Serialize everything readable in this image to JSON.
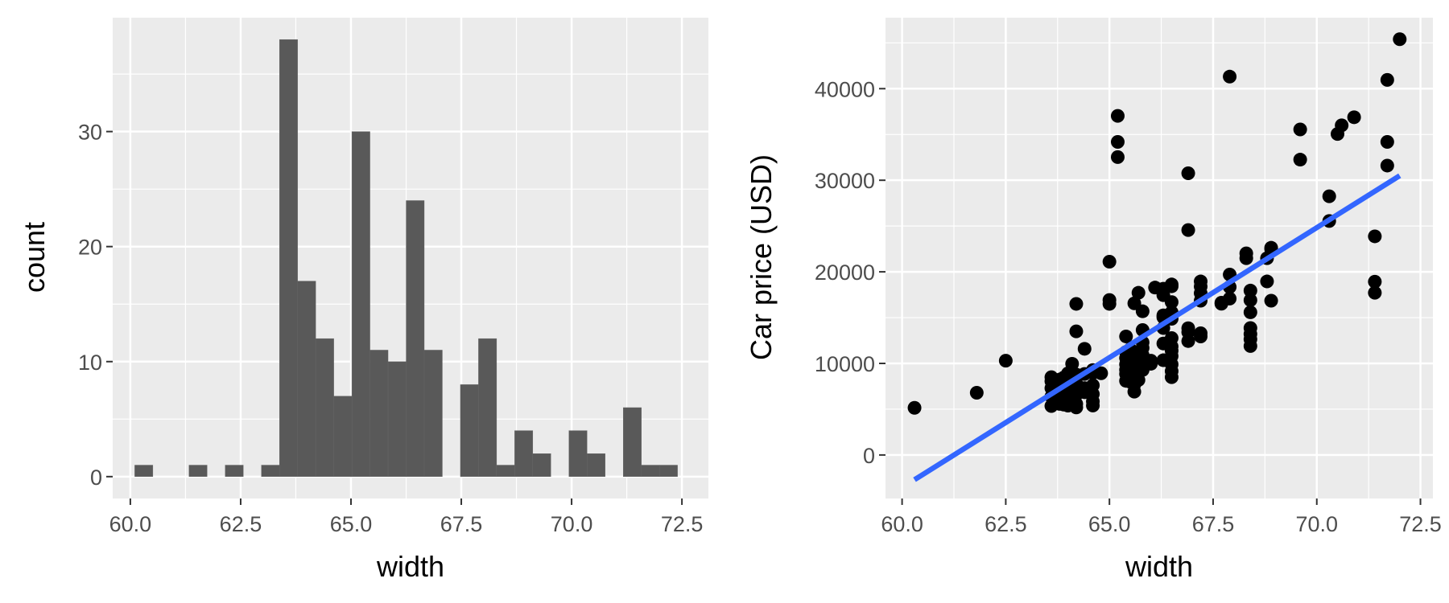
{
  "chart_data": [
    {
      "type": "bar",
      "subtype": "histogram",
      "xlabel": "width",
      "ylabel": "count",
      "xlim": [
        59.6,
        73.1
      ],
      "ylim": [
        -1.9,
        39.9
      ],
      "x_ticks": [
        60.0,
        62.5,
        65.0,
        67.5,
        70.0,
        72.5
      ],
      "x_tick_labels": [
        "60.0",
        "62.5",
        "65.0",
        "67.5",
        "70.0",
        "72.5"
      ],
      "y_ticks": [
        0,
        10,
        20,
        30
      ],
      "y_tick_labels": [
        "0",
        "10",
        "20",
        "30"
      ],
      "bin_width": 0.41,
      "bins": [
        {
          "start": 60.1,
          "count": 1
        },
        {
          "start": 61.33,
          "count": 1
        },
        {
          "start": 62.15,
          "count": 1
        },
        {
          "start": 62.97,
          "count": 1
        },
        {
          "start": 63.38,
          "count": 38
        },
        {
          "start": 63.79,
          "count": 17
        },
        {
          "start": 64.2,
          "count": 12
        },
        {
          "start": 64.61,
          "count": 7
        },
        {
          "start": 65.02,
          "count": 30
        },
        {
          "start": 65.43,
          "count": 11
        },
        {
          "start": 65.84,
          "count": 10
        },
        {
          "start": 66.25,
          "count": 24
        },
        {
          "start": 66.66,
          "count": 11
        },
        {
          "start": 67.48,
          "count": 8
        },
        {
          "start": 67.89,
          "count": 12
        },
        {
          "start": 68.3,
          "count": 1
        },
        {
          "start": 68.71,
          "count": 4
        },
        {
          "start": 69.12,
          "count": 2
        },
        {
          "start": 69.94,
          "count": 4
        },
        {
          "start": 70.35,
          "count": 2
        },
        {
          "start": 71.17,
          "count": 6
        },
        {
          "start": 71.58,
          "count": 1
        },
        {
          "start": 71.99,
          "count": 1
        }
      ],
      "colors": {
        "bar": "#595959",
        "panel": "#ebebeb",
        "grid": "#ffffff"
      }
    },
    {
      "type": "scatter",
      "xlabel": "width",
      "ylabel": "Car price (USD)",
      "xlim": [
        59.6,
        72.8
      ],
      "ylim": [
        -4750,
        47750
      ],
      "x_ticks": [
        60.0,
        62.5,
        65.0,
        67.5,
        70.0,
        72.5
      ],
      "x_tick_labels": [
        "60.0",
        "62.5",
        "65.0",
        "67.5",
        "70.0",
        "72.5"
      ],
      "y_ticks": [
        0,
        10000,
        20000,
        30000,
        40000
      ],
      "y_tick_labels": [
        "0",
        "10000",
        "20000",
        "30000",
        "40000"
      ],
      "points": [
        [
          60.3,
          5151
        ],
        [
          61.8,
          6795
        ],
        [
          62.5,
          10295
        ],
        [
          63.6,
          5348
        ],
        [
          63.6,
          6377
        ],
        [
          63.6,
          7295
        ],
        [
          63.6,
          8058
        ],
        [
          63.6,
          8495
        ],
        [
          63.8,
          5572
        ],
        [
          63.8,
          6229
        ],
        [
          63.8,
          6692
        ],
        [
          63.8,
          7126
        ],
        [
          63.8,
          7609
        ],
        [
          63.8,
          8238
        ],
        [
          63.9,
          5499
        ],
        [
          63.9,
          6095
        ],
        [
          63.9,
          6669
        ],
        [
          63.9,
          7349
        ],
        [
          63.9,
          7775
        ],
        [
          63.9,
          8449
        ],
        [
          64.0,
          5389
        ],
        [
          64.0,
          6338
        ],
        [
          64.0,
          6938
        ],
        [
          64.0,
          7463
        ],
        [
          64.0,
          8013
        ],
        [
          64.0,
          8916
        ],
        [
          64.1,
          6189
        ],
        [
          64.1,
          6488
        ],
        [
          64.1,
          7198
        ],
        [
          64.1,
          7898
        ],
        [
          64.1,
          9095
        ],
        [
          64.1,
          9960
        ],
        [
          64.2,
          5195
        ],
        [
          64.2,
          5572
        ],
        [
          64.2,
          6575
        ],
        [
          64.2,
          7053
        ],
        [
          64.2,
          7788
        ],
        [
          64.2,
          8778
        ],
        [
          64.2,
          13499
        ],
        [
          64.2,
          16500
        ],
        [
          64.4,
          6855
        ],
        [
          64.4,
          7299
        ],
        [
          64.4,
          8845
        ],
        [
          64.4,
          11595
        ],
        [
          64.6,
          5399
        ],
        [
          64.6,
          5848
        ],
        [
          64.6,
          6649
        ],
        [
          64.6,
          7609
        ],
        [
          64.6,
          8948
        ],
        [
          64.6,
          9279
        ],
        [
          64.8,
          8921
        ],
        [
          65.0,
          16500
        ],
        [
          65.0,
          16925
        ],
        [
          65.0,
          21105
        ],
        [
          65.2,
          32528
        ],
        [
          65.2,
          34184
        ],
        [
          65.2,
          37028
        ],
        [
          65.4,
          8095
        ],
        [
          65.4,
          8845
        ],
        [
          65.4,
          9295
        ],
        [
          65.4,
          9895
        ],
        [
          65.4,
          10595
        ],
        [
          65.4,
          11245
        ],
        [
          65.4,
          12945
        ],
        [
          65.5,
          7995
        ],
        [
          65.5,
          8495
        ],
        [
          65.5,
          9233
        ],
        [
          65.5,
          9989
        ],
        [
          65.5,
          10698
        ],
        [
          65.5,
          11549
        ],
        [
          65.6,
          6918
        ],
        [
          65.6,
          7689
        ],
        [
          65.6,
          8449
        ],
        [
          65.6,
          9538
        ],
        [
          65.6,
          10945
        ],
        [
          65.6,
          16558
        ],
        [
          65.7,
          8189
        ],
        [
          65.7,
          8949
        ],
        [
          65.7,
          9639
        ],
        [
          65.7,
          10345
        ],
        [
          65.7,
          11259
        ],
        [
          65.7,
          17710
        ],
        [
          65.8,
          9279
        ],
        [
          65.8,
          9988
        ],
        [
          65.8,
          10898
        ],
        [
          65.8,
          11694
        ],
        [
          65.8,
          12290
        ],
        [
          65.8,
          13645
        ],
        [
          65.8,
          15690
        ],
        [
          66.0,
          9959
        ],
        [
          66.0,
          10295
        ],
        [
          66.1,
          18280
        ],
        [
          66.3,
          10345
        ],
        [
          66.3,
          12170
        ],
        [
          66.3,
          13860
        ],
        [
          66.3,
          15040
        ],
        [
          66.3,
          15250
        ],
        [
          66.3,
          17450
        ],
        [
          66.3,
          18150
        ],
        [
          66.5,
          8495
        ],
        [
          66.5,
          9155
        ],
        [
          66.5,
          9895
        ],
        [
          66.5,
          10795
        ],
        [
          66.5,
          11395
        ],
        [
          66.5,
          11850
        ],
        [
          66.5,
          12764
        ],
        [
          66.5,
          14869
        ],
        [
          66.5,
          15580
        ],
        [
          66.5,
          16695
        ],
        [
          66.5,
          18420
        ],
        [
          66.5,
          18620
        ],
        [
          66.9,
          12440
        ],
        [
          66.9,
          13415
        ],
        [
          66.9,
          13845
        ],
        [
          66.9,
          24565
        ],
        [
          66.9,
          30760
        ],
        [
          67.2,
          12940
        ],
        [
          67.2,
          13295
        ],
        [
          67.2,
          16845
        ],
        [
          67.2,
          17669
        ],
        [
          67.2,
          18399
        ],
        [
          67.2,
          18950
        ],
        [
          67.7,
          16515
        ],
        [
          67.7,
          16630
        ],
        [
          67.9,
          17075
        ],
        [
          67.9,
          18344
        ],
        [
          67.9,
          19699
        ],
        [
          67.9,
          41315
        ],
        [
          68.3,
          21485
        ],
        [
          68.3,
          22018
        ],
        [
          68.4,
          11900
        ],
        [
          68.4,
          12629
        ],
        [
          68.4,
          13200
        ],
        [
          68.4,
          13860
        ],
        [
          68.4,
          15580
        ],
        [
          68.4,
          16900
        ],
        [
          68.4,
          17950
        ],
        [
          68.8,
          18950
        ],
        [
          68.8,
          21485
        ],
        [
          68.9,
          16845
        ],
        [
          68.9,
          22470
        ],
        [
          68.9,
          22625
        ],
        [
          69.6,
          32250
        ],
        [
          69.6,
          35550
        ],
        [
          70.3,
          25552
        ],
        [
          70.3,
          28248
        ],
        [
          70.5,
          35056
        ],
        [
          70.6,
          36000
        ],
        [
          70.9,
          36880
        ],
        [
          71.4,
          17710
        ],
        [
          71.4,
          18920
        ],
        [
          71.4,
          23875
        ],
        [
          71.7,
          31600
        ],
        [
          71.7,
          34184
        ],
        [
          71.7,
          40960
        ],
        [
          72.0,
          45400
        ]
      ],
      "fit_line": {
        "x": [
          60.3,
          72.0
        ],
        "y": [
          -2700,
          30500
        ],
        "color": "#3366ff"
      },
      "colors": {
        "point": "#000000",
        "panel": "#ebebeb",
        "grid": "#ffffff"
      }
    }
  ]
}
